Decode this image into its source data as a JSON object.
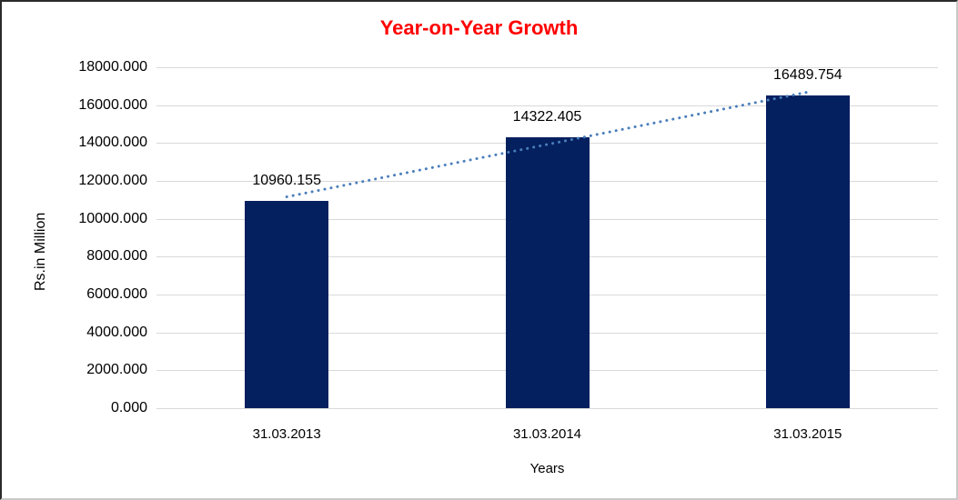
{
  "chart_data": {
    "type": "bar",
    "title": "Year-on-Year Growth",
    "title_color": "#ff0000",
    "categories": [
      "31.03.2013",
      "31.03.2014",
      "31.03.2015"
    ],
    "values": [
      10960.155,
      14322.405,
      16489.754
    ],
    "data_labels": [
      "10960.155",
      "14322.405",
      "16489.754"
    ],
    "xlabel": "Years",
    "ylabel": "Rs.in Million",
    "ylim": [
      0,
      18000
    ],
    "ytick_step": 2000,
    "yticks_top_to_bottom": [
      "18000.000",
      "16000.000",
      "14000.000",
      "12000.000",
      "10000.000",
      "8000.000",
      "6000.000",
      "4000.000",
      "2000.000",
      "0.000"
    ],
    "grid": true,
    "legend": "none",
    "bar_color": "#05205f",
    "gridline_color": "#d9d9d9",
    "trendline": {
      "type": "linear",
      "style": "dotted",
      "color": "#4a7ebb",
      "value_at_first_category": 11159.306,
      "value_at_last_category": 16688.905
    }
  }
}
